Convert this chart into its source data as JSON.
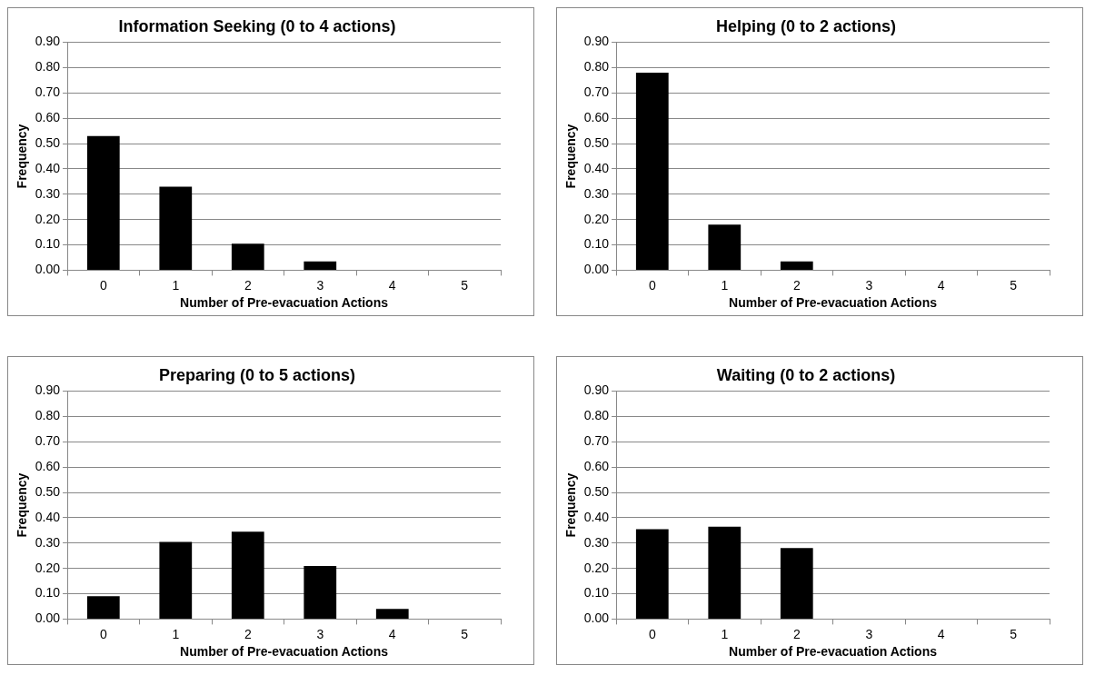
{
  "chart_data": [
    {
      "type": "bar",
      "title": "Information Seeking (0 to 4 actions)",
      "xlabel": "Number of Pre-evacuation Actions",
      "ylabel": "Frequency",
      "categories": [
        "0",
        "1",
        "2",
        "3",
        "4",
        "5"
      ],
      "values": [
        0.53,
        0.33,
        0.105,
        0.035,
        0,
        0
      ],
      "color": "#000000",
      "ylim": [
        0,
        0.9
      ],
      "yticks": [
        {
          "value": 0,
          "label": "0.00"
        },
        {
          "value": 0.1,
          "label": "0.10"
        },
        {
          "value": 0.2,
          "label": "0.20"
        },
        {
          "value": 0.3,
          "label": "0.30"
        },
        {
          "value": 0.4,
          "label": "0.40"
        },
        {
          "value": 0.5,
          "label": "0.50"
        },
        {
          "value": 0.6,
          "label": "0.60"
        },
        {
          "value": 0.7,
          "label": "0.70"
        },
        {
          "value": 0.8,
          "label": "0.80"
        },
        {
          "value": 0.9,
          "label": "0.90"
        }
      ],
      "grid": "y",
      "legend": false
    },
    {
      "type": "bar",
      "title": "Helping (0 to 2 actions)",
      "xlabel": "Number of Pre-evacuation Actions",
      "ylabel": "Frequency",
      "categories": [
        "0",
        "1",
        "2",
        "3",
        "4",
        "5"
      ],
      "values": [
        0.78,
        0.18,
        0.035,
        0,
        0,
        0
      ],
      "color": "#000000",
      "ylim": [
        0,
        0.9
      ],
      "yticks": [
        {
          "value": 0,
          "label": "0.00"
        },
        {
          "value": 0.1,
          "label": "0.10"
        },
        {
          "value": 0.2,
          "label": "0.20"
        },
        {
          "value": 0.3,
          "label": "0.30"
        },
        {
          "value": 0.4,
          "label": "0.40"
        },
        {
          "value": 0.5,
          "label": "0.50"
        },
        {
          "value": 0.6,
          "label": "0.60"
        },
        {
          "value": 0.7,
          "label": "0.70"
        },
        {
          "value": 0.8,
          "label": "0.80"
        },
        {
          "value": 0.9,
          "label": "0.90"
        }
      ],
      "grid": "y",
      "legend": false
    },
    {
      "type": "bar",
      "title": "Preparing (0 to 5 actions)",
      "xlabel": "Number of Pre-evacuation Actions",
      "ylabel": "Frequency",
      "categories": [
        "0",
        "1",
        "2",
        "3",
        "4",
        "5"
      ],
      "values": [
        0.09,
        0.305,
        0.345,
        0.21,
        0.04,
        0
      ],
      "color": "#000000",
      "ylim": [
        0,
        0.9
      ],
      "yticks": [
        {
          "value": 0,
          "label": "0.00"
        },
        {
          "value": 0.1,
          "label": "0.10"
        },
        {
          "value": 0.2,
          "label": "0.20"
        },
        {
          "value": 0.3,
          "label": "0.30"
        },
        {
          "value": 0.4,
          "label": "0.40"
        },
        {
          "value": 0.5,
          "label": "0.50"
        },
        {
          "value": 0.6,
          "label": "0.60"
        },
        {
          "value": 0.7,
          "label": "0.70"
        },
        {
          "value": 0.8,
          "label": "0.80"
        },
        {
          "value": 0.9,
          "label": "0.90"
        }
      ],
      "grid": "y",
      "legend": false
    },
    {
      "type": "bar",
      "title": "Waiting (0 to 2 actions)",
      "xlabel": "Number of Pre-evacuation Actions",
      "ylabel": "Frequency",
      "categories": [
        "0",
        "1",
        "2",
        "3",
        "4",
        "5"
      ],
      "values": [
        0.355,
        0.365,
        0.28,
        0,
        0,
        0
      ],
      "color": "#000000",
      "ylim": [
        0,
        0.9
      ],
      "yticks": [
        {
          "value": 0,
          "label": "0.00"
        },
        {
          "value": 0.1,
          "label": "0.10"
        },
        {
          "value": 0.2,
          "label": "0.20"
        },
        {
          "value": 0.3,
          "label": "0.30"
        },
        {
          "value": 0.4,
          "label": "0.40"
        },
        {
          "value": 0.5,
          "label": "0.50"
        },
        {
          "value": 0.6,
          "label": "0.60"
        },
        {
          "value": 0.7,
          "label": "0.70"
        },
        {
          "value": 0.8,
          "label": "0.80"
        },
        {
          "value": 0.9,
          "label": "0.90"
        }
      ],
      "grid": "y",
      "legend": false
    }
  ]
}
